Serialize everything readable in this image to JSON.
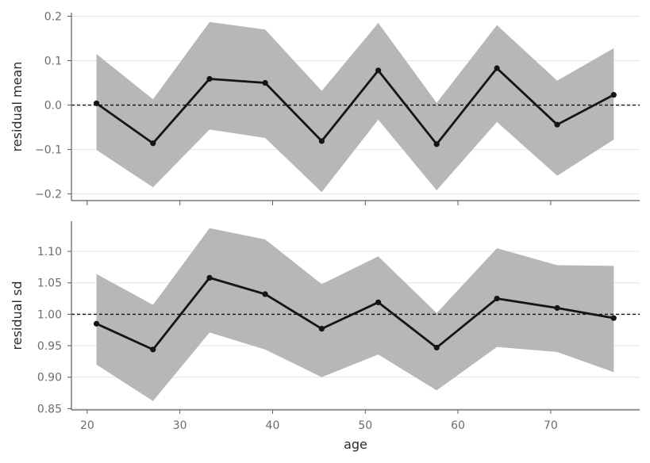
{
  "chart_data": [
    {
      "type": "line",
      "ylabel": "residual mean",
      "xlabel": "",
      "xlim": [
        18.3,
        79.6
      ],
      "ylim": [
        -0.215,
        0.208
      ],
      "yticks": [
        -0.2,
        -0.1,
        0.0,
        0.1,
        0.2
      ],
      "ytick_labels": [
        "−0.2",
        "−0.1",
        "0.0",
        "0.1",
        "0.2"
      ],
      "xticks": [
        20,
        30,
        40,
        50,
        60,
        70
      ],
      "show_xtick_labels": false,
      "grid": "horizontal",
      "reference_line": 0.0,
      "x": [
        21.0,
        27.1,
        33.2,
        39.2,
        45.3,
        51.4,
        57.7,
        64.2,
        70.7,
        76.8
      ],
      "values": [
        0.004,
        -0.086,
        0.059,
        0.05,
        -0.081,
        0.078,
        -0.088,
        0.083,
        -0.044,
        0.023
      ],
      "band_upper": [
        0.115,
        0.013,
        0.187,
        0.17,
        0.032,
        0.185,
        0.005,
        0.18,
        0.055,
        0.128
      ],
      "band_lower": [
        -0.101,
        -0.185,
        -0.055,
        -0.074,
        -0.196,
        -0.033,
        -0.192,
        -0.038,
        -0.159,
        -0.078
      ],
      "colors": {
        "line": "#151515",
        "band": "#b7b7b9",
        "grid": "#e4e4e6",
        "axis": "#5c5c66"
      }
    },
    {
      "type": "line",
      "ylabel": "residual sd",
      "xlabel": "age",
      "xlim": [
        18.3,
        79.6
      ],
      "ylim": [
        0.848,
        1.148
      ],
      "yticks": [
        0.85,
        0.9,
        0.95,
        1.0,
        1.05,
        1.1
      ],
      "ytick_labels": [
        "0.85",
        "0.90",
        "0.95",
        "1.00",
        "1.05",
        "1.10"
      ],
      "xticks": [
        20,
        30,
        40,
        50,
        60,
        70
      ],
      "xtick_labels": [
        "20",
        "30",
        "40",
        "50",
        "60",
        "70"
      ],
      "show_xtick_labels": true,
      "grid": "horizontal",
      "reference_line": 1.0,
      "x": [
        21.0,
        27.1,
        33.2,
        39.2,
        45.3,
        51.4,
        57.7,
        64.2,
        70.7,
        76.8
      ],
      "values": [
        0.985,
        0.944,
        1.058,
        1.032,
        0.977,
        1.019,
        0.947,
        1.025,
        1.01,
        0.994
      ],
      "band_upper": [
        1.064,
        1.015,
        1.137,
        1.119,
        1.048,
        1.092,
        1.002,
        1.105,
        1.078,
        1.077
      ],
      "band_lower": [
        0.92,
        0.862,
        0.971,
        0.944,
        0.9,
        0.936,
        0.879,
        0.948,
        0.94,
        0.908
      ],
      "colors": {
        "line": "#151515",
        "band": "#b7b7b9",
        "grid": "#e4e4e6",
        "axis": "#5c5c66"
      }
    }
  ]
}
